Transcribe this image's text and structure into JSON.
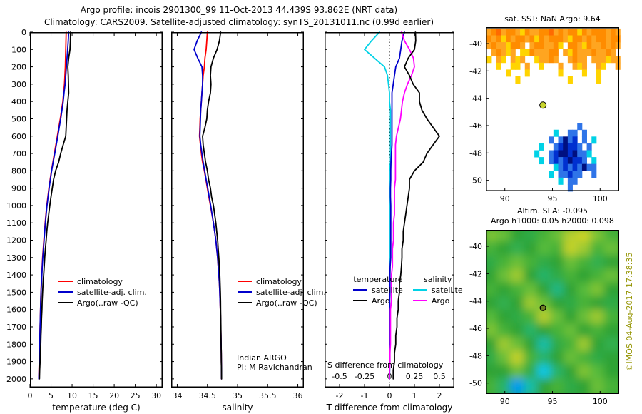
{
  "header": {
    "line1": "Argo profile: incois 2901300_99 11-Oct-2013 44.439S 93.862E (NRT data)",
    "line2": "Climatology: CARS2009. Satellite-adjusted climatology: synTS_20131011.nc (0.99d earlier)"
  },
  "watermark": {
    "text": "©IMOS 04-Aug-2017 17:38:35",
    "color": "#949400"
  },
  "annotations": {
    "indian_argo_line1": "Indian ARGO",
    "indian_argo_line2": "PI: M Ravichandran",
    "s_diff_note": "S difference from climatology"
  },
  "chart_data": [
    {
      "type": "line",
      "panel": "temperature-profile",
      "xlabel": "temperature (deg C)",
      "xlim": [
        0,
        31.5
      ],
      "xticks": [
        0,
        5,
        10,
        15,
        20,
        25,
        30
      ],
      "xtick_labels": [
        "0",
        "5",
        "10",
        "15",
        "20",
        "25",
        "30"
      ],
      "ylim": [
        0,
        2050
      ],
      "yticks": [
        0,
        100,
        200,
        300,
        400,
        500,
        600,
        700,
        800,
        900,
        1000,
        1100,
        1200,
        1300,
        1400,
        1500,
        1600,
        1700,
        1800,
        1900,
        2000
      ],
      "show_depth_labels": true,
      "depths": [
        0,
        50,
        100,
        150,
        200,
        250,
        300,
        350,
        400,
        450,
        500,
        550,
        600,
        650,
        700,
        750,
        800,
        850,
        900,
        950,
        1000,
        1050,
        1100,
        1150,
        1200,
        1250,
        1300,
        1350,
        1400,
        1450,
        1500,
        1550,
        1600,
        1650,
        1700,
        1750,
        1800,
        1850,
        1900,
        1950,
        2000
      ],
      "series": [
        {
          "name": "climatology",
          "color": "#ff0000",
          "values": [
            8.6,
            8.55,
            8.5,
            8.45,
            8.4,
            8.3,
            8.2,
            8.0,
            7.8,
            7.5,
            7.2,
            6.85,
            6.5,
            6.15,
            5.8,
            5.45,
            5.1,
            4.8,
            4.5,
            4.25,
            4.0,
            3.8,
            3.6,
            3.45,
            3.3,
            3.15,
            3.0,
            2.9,
            2.8,
            2.7,
            2.6,
            2.55,
            2.5,
            2.45,
            2.4,
            2.35,
            2.3,
            2.25,
            2.2,
            2.15,
            2.1
          ]
        },
        {
          "name": "satellite-adj. clim.",
          "color": "#0000cc",
          "values": [
            9.2,
            9.1,
            8.95,
            8.8,
            8.65,
            8.5,
            8.35,
            8.1,
            7.9,
            7.6,
            7.3,
            6.95,
            6.6,
            6.25,
            5.9,
            5.5,
            5.15,
            4.85,
            4.55,
            4.3,
            4.05,
            3.85,
            3.65,
            3.5,
            3.35,
            3.2,
            3.05,
            2.93,
            2.82,
            2.72,
            2.62,
            2.56,
            2.51,
            2.46,
            2.41,
            2.36,
            2.31,
            2.26,
            2.21,
            2.16,
            2.1
          ]
        },
        {
          "name": "Argo(..raw -QC)",
          "color": "#000000",
          "values": [
            9.64,
            9.6,
            9.5,
            9.2,
            9.0,
            9.1,
            9.15,
            9.2,
            9.0,
            8.8,
            8.7,
            8.6,
            8.5,
            7.9,
            7.3,
            6.8,
            6.1,
            5.6,
            5.3,
            5.0,
            4.7,
            4.45,
            4.2,
            4.0,
            3.85,
            3.65,
            3.5,
            3.38,
            3.25,
            3.1,
            3.0,
            2.9,
            2.85,
            2.75,
            2.7,
            2.6,
            2.55,
            2.45,
            2.4,
            2.3,
            2.25
          ]
        }
      ]
    },
    {
      "type": "line",
      "panel": "salinity-profile",
      "xlabel": "salinity",
      "xlim": [
        33.9,
        36.1
      ],
      "xticks": [
        34,
        34.5,
        35,
        35.5,
        36
      ],
      "xtick_labels": [
        "34",
        "34.5",
        "35",
        "35.5",
        "36"
      ],
      "ylim": [
        0,
        2050
      ],
      "yticks": [
        0,
        100,
        200,
        300,
        400,
        500,
        600,
        700,
        800,
        900,
        1000,
        1100,
        1200,
        1300,
        1400,
        1500,
        1600,
        1700,
        1800,
        1900,
        2000
      ],
      "show_depth_labels": false,
      "depths": [
        0,
        50,
        100,
        150,
        200,
        250,
        300,
        350,
        400,
        450,
        500,
        550,
        600,
        650,
        700,
        750,
        800,
        850,
        900,
        950,
        1000,
        1050,
        1100,
        1150,
        1200,
        1250,
        1300,
        1350,
        1400,
        1450,
        1500,
        1550,
        1600,
        1650,
        1700,
        1750,
        1800,
        1850,
        1900,
        1950,
        2000
      ],
      "series": [
        {
          "name": "climatology",
          "color": "#ff0000",
          "values": [
            34.5,
            34.49,
            34.48,
            34.46,
            34.45,
            34.43,
            34.42,
            34.41,
            34.4,
            34.39,
            34.38,
            34.375,
            34.37,
            34.385,
            34.4,
            34.42,
            34.45,
            34.475,
            34.5,
            34.525,
            34.55,
            34.575,
            34.6,
            34.62,
            34.64,
            34.655,
            34.67,
            34.68,
            34.69,
            34.7,
            34.705,
            34.71,
            34.715,
            34.72,
            34.722,
            34.725,
            34.728,
            34.73,
            34.732,
            34.734,
            34.735
          ]
        },
        {
          "name": "satellite-adj. clim.",
          "color": "#0000cc",
          "values": [
            34.4,
            34.33,
            34.28,
            34.34,
            34.41,
            34.42,
            34.42,
            34.41,
            34.4,
            34.39,
            34.385,
            34.38,
            34.375,
            34.39,
            34.41,
            34.43,
            34.455,
            34.48,
            34.505,
            34.53,
            34.555,
            34.578,
            34.6,
            34.62,
            34.64,
            34.655,
            34.67,
            34.68,
            34.69,
            34.7,
            34.705,
            34.71,
            34.715,
            34.72,
            34.722,
            34.725,
            34.728,
            34.73,
            34.732,
            34.734,
            34.735
          ]
        },
        {
          "name": "Argo(..raw -QC)",
          "color": "#000000",
          "values": [
            34.72,
            34.7,
            34.66,
            34.6,
            34.56,
            34.55,
            34.56,
            34.55,
            34.52,
            34.5,
            34.49,
            34.46,
            34.42,
            34.43,
            34.45,
            34.47,
            34.5,
            34.52,
            34.55,
            34.57,
            34.6,
            34.62,
            34.64,
            34.655,
            34.67,
            34.68,
            34.69,
            34.7,
            34.705,
            34.71,
            34.715,
            34.718,
            34.72,
            34.722,
            34.724,
            34.726,
            34.728,
            34.73,
            34.732,
            34.734,
            34.735
          ]
        }
      ]
    },
    {
      "type": "line",
      "panel": "difference-from-climatology",
      "xlabel": "T difference from climatology",
      "xlim": [
        -2.6,
        2.6
      ],
      "xticks": [
        -2,
        -1,
        0,
        1,
        2
      ],
      "xtick_labels": [
        "-2",
        "-1",
        "0",
        "1",
        "2"
      ],
      "ylim": [
        0,
        2050
      ],
      "yticks": [
        0,
        100,
        200,
        300,
        400,
        500,
        600,
        700,
        800,
        900,
        1000,
        1100,
        1200,
        1300,
        1400,
        1500,
        1600,
        1700,
        1800,
        1900,
        2000
      ],
      "show_depth_labels": false,
      "zero_line": true,
      "s_scale": 4,
      "s_ticks": [
        {
          "value": -0.5,
          "label": "-0.5"
        },
        {
          "value": -0.25,
          "label": "-0.25"
        },
        {
          "value": 0,
          "label": "0"
        },
        {
          "value": 0.25,
          "label": "0.25"
        },
        {
          "value": 0.5,
          "label": "0.5"
        }
      ],
      "legend_headers": {
        "temperature": "temperature",
        "salinity": "salinity"
      },
      "depths": [
        0,
        50,
        100,
        150,
        200,
        250,
        300,
        350,
        400,
        450,
        500,
        550,
        600,
        650,
        700,
        750,
        800,
        850,
        900,
        950,
        1000,
        1050,
        1100,
        1150,
        1200,
        1250,
        1300,
        1350,
        1400,
        1450,
        1500,
        1550,
        1600,
        1650,
        1700,
        1750,
        1800,
        1850,
        1900,
        1950,
        2000
      ],
      "series": [
        {
          "name": "satellite",
          "axis": "S",
          "color": "#00d2e6",
          "values": [
            -0.1,
            -0.18,
            -0.25,
            -0.15,
            -0.05,
            -0.02,
            -0.01,
            0,
            0,
            0.01,
            0.01,
            0.01,
            0.01,
            0.01,
            0.01,
            0.01,
            0,
            0,
            0,
            0,
            0,
            0,
            0,
            0,
            0,
            0,
            0,
            0,
            0,
            0,
            0,
            0,
            0,
            0,
            0,
            0,
            0,
            0,
            0,
            0,
            0
          ]
        },
        {
          "name": "satellite",
          "axis": "T",
          "color": "#0000cc",
          "values": [
            0.6,
            0.5,
            0.45,
            0.4,
            0.25,
            0.2,
            0.15,
            0.1,
            0.1,
            0.1,
            0.1,
            0.1,
            0.1,
            0.1,
            0.08,
            0.06,
            0.05,
            0.05,
            0.04,
            0.04,
            0.05,
            0.05,
            0.05,
            0.05,
            0.05,
            0.05,
            0.05,
            0.03,
            0.02,
            0.02,
            0.02,
            0.01,
            0.01,
            0.01,
            0.01,
            0.01,
            0.01,
            0.01,
            0.01,
            0.01,
            0
          ]
        },
        {
          "name": "Argo",
          "axis": "S",
          "color": "#ff00ff",
          "values": [
            0.12,
            0.15,
            0.2,
            0.24,
            0.25,
            0.22,
            0.18,
            0.15,
            0.13,
            0.12,
            0.11,
            0.09,
            0.07,
            0.06,
            0.06,
            0.06,
            0.06,
            0.06,
            0.05,
            0.05,
            0.05,
            0.05,
            0.04,
            0.04,
            0.04,
            0.03,
            0.03,
            0.03,
            0.02,
            0.02,
            0.02,
            0.02,
            0.01,
            0.01,
            0.01,
            0.01,
            0.01,
            0.005,
            0.005,
            0,
            0
          ]
        },
        {
          "name": "Argo",
          "axis": "T",
          "color": "#000000",
          "values": [
            1.04,
            1.05,
            1.0,
            0.75,
            0.6,
            0.8,
            0.95,
            1.2,
            1.2,
            1.3,
            1.5,
            1.75,
            2.0,
            1.75,
            1.5,
            1.35,
            1.0,
            0.8,
            0.8,
            0.75,
            0.7,
            0.65,
            0.6,
            0.55,
            0.55,
            0.5,
            0.5,
            0.48,
            0.45,
            0.4,
            0.4,
            0.35,
            0.35,
            0.3,
            0.3,
            0.25,
            0.25,
            0.2,
            0.2,
            0.15,
            0.15
          ]
        }
      ]
    },
    {
      "type": "scatter",
      "panel": "sst-map",
      "title": "sat. SST: NaN Argo: 9.64",
      "xlim": [
        88,
        102
      ],
      "ylim": [
        -38.8,
        -50.8
      ],
      "xticks": [
        90,
        95,
        100
      ],
      "xtick_labels": [
        "90",
        "95",
        "100"
      ],
      "yticks": [
        -40,
        -42,
        -44,
        -46,
        -48,
        -50
      ],
      "ytick_labels": [
        "-40",
        "-42",
        "-44",
        "-46",
        "-48",
        "-50"
      ],
      "cell_deg": 0.5,
      "palette": {
        "O": "#ff8c00",
        "o": "#ffa520",
        "y": "#ffd400",
        "r": "#ff6a00",
        "B": "#0030d0",
        "D": "#001080",
        "b": "#2f74e8",
        "c": "#00d2e6"
      },
      "clusters": [
        {
          "lon0": 88.1,
          "lat0": -38.9,
          "rows": [
            "oOroOOoyOooOOroOoOOyOoOOOoOo",
            "OoOyOoOOoOyOoOOOoyOOoOoOOoOO",
            "oOooyOOo.oOOooOy.OOoyOooOoOo",
            ".oOoyo.yyOoooOO.oyOoooOooOo.",
            "y.oy.oyo..yooOo..oOoo.oooyoo",
            "..y..yy.o..y...o..oyo..oy..o",
            "....y...y......y....y..y....",
            "......y..........y.....y...."
          ]
        },
        {
          "lon0": 92.6,
          "lat0": -45.8,
          "rows": [
            "..........b......",
            ".....c..bb.b.....",
            "....b.bDbB.b.c...",
            "..c..bBDBBb.b....",
            ".c..bBDDBDbbc....",
            "..c.bBbBDBBb.c...",
            ".....cbBbBbDbb...",
            "....c.bbBbb..b...",
            "......c.bb.......",
            "........b........"
          ]
        }
      ],
      "marker": {
        "lon": 94,
        "lat": -44.5,
        "fill": "#c8d42e"
      }
    },
    {
      "type": "heatmap",
      "panel": "sla-map",
      "title1": "Altim. SLA: -0.095",
      "title2": "Argo h1000: 0.05 h2000: 0.098",
      "xlim": [
        88,
        102
      ],
      "ylim": [
        -38.8,
        -50.8
      ],
      "xticks": [
        90,
        95,
        100
      ],
      "xtick_labels": [
        "90",
        "95",
        "100"
      ],
      "yticks": [
        -40,
        -42,
        -44,
        -46,
        -48,
        -50
      ],
      "ytick_labels": [
        "-40",
        "-42",
        "-44",
        "-46",
        "-48",
        "-50"
      ],
      "colormap_stops": [
        [
          -0.6,
          "#00008f"
        ],
        [
          -0.35,
          "#0040ff"
        ],
        [
          -0.2,
          "#00c8e6"
        ],
        [
          -0.08,
          "#30b050"
        ],
        [
          0,
          "#2da335"
        ],
        [
          0.08,
          "#56bb3a"
        ],
        [
          0.16,
          "#a8cc30"
        ],
        [
          0.26,
          "#e8d820"
        ],
        [
          0.4,
          "#ff9800"
        ],
        [
          0.6,
          "#c80000"
        ]
      ],
      "grid": {
        "values": [
          [
            0.12,
            0.1,
            0.0,
            -0.05,
            0.05,
            0.1,
            0.18,
            0.22,
            0.12,
            0.05
          ],
          [
            0.05,
            0.0,
            -0.08,
            0.0,
            0.08,
            0.05,
            0.2,
            0.15,
            0.05,
            0.1
          ],
          [
            -0.05,
            0.05,
            0.1,
            0.05,
            -0.05,
            0.0,
            0.1,
            0.05,
            -0.08,
            0.0
          ],
          [
            0.0,
            0.1,
            0.15,
            0.0,
            -0.1,
            -0.05,
            0.05,
            0.0,
            0.05,
            0.1
          ],
          [
            0.05,
            0.0,
            0.05,
            0.1,
            0.0,
            -0.12,
            0.0,
            0.08,
            0.12,
            0.0
          ],
          [
            0.0,
            -0.08,
            0.0,
            0.15,
            0.1,
            0.0,
            -0.05,
            0.05,
            0.0,
            -0.05
          ],
          [
            0.08,
            0.0,
            -0.05,
            0.05,
            0.18,
            0.1,
            0.0,
            0.1,
            0.15,
            0.05
          ],
          [
            0.12,
            0.05,
            0.0,
            -0.1,
            0.0,
            0.05,
            0.1,
            0.0,
            0.05,
            0.0
          ],
          [
            0.0,
            0.15,
            0.1,
            0.0,
            -0.15,
            -0.05,
            0.05,
            0.15,
            0.0,
            -0.08
          ],
          [
            -0.05,
            0.1,
            0.2,
            0.05,
            -0.1,
            0.0,
            0.1,
            0.05,
            -0.05,
            0.0
          ],
          [
            0.0,
            0.0,
            0.1,
            -0.05,
            -0.2,
            -0.1,
            0.0,
            0.12,
            0.08,
            0.0
          ],
          [
            0.05,
            -0.1,
            -0.25,
            -0.15,
            0.0,
            0.05,
            -0.05,
            0.0,
            0.1,
            0.05
          ]
        ]
      },
      "marker": {
        "lon": 94,
        "lat": -44.5,
        "fill": "#6b7d22"
      }
    }
  ]
}
